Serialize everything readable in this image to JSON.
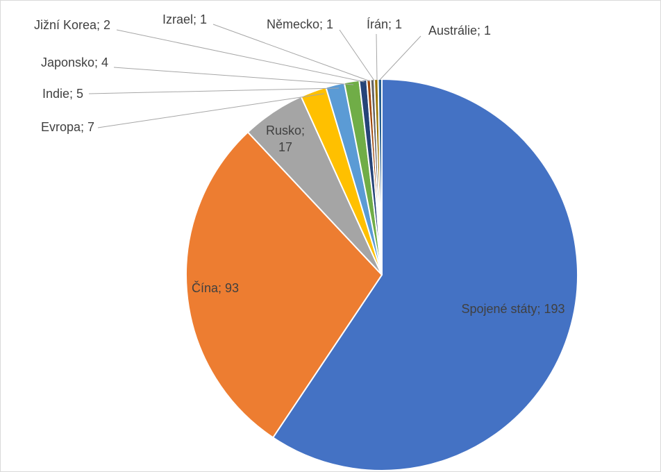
{
  "chart_data": {
    "type": "pie",
    "title": "",
    "legend": "none",
    "start_angle_deg": 0,
    "direction": "clockwise",
    "slices": [
      {
        "name": "Spojené státy",
        "value": 193,
        "label": "Spojené státy; 193",
        "color": "#4472C4"
      },
      {
        "name": "Čína",
        "value": 93,
        "label": "Čína; 93",
        "color": "#ED7D31"
      },
      {
        "name": "Rusko",
        "value": 17,
        "label": "Rusko; 17",
        "label_lines": [
          "Rusko;",
          "17"
        ],
        "color": "#A5A5A5"
      },
      {
        "name": "Evropa",
        "value": 7,
        "label": "Evropa; 7",
        "color": "#FFC000"
      },
      {
        "name": "Indie",
        "value": 5,
        "label": "Indie; 5",
        "color": "#5B9BD5"
      },
      {
        "name": "Japonsko",
        "value": 4,
        "label": "Japonsko; 4",
        "color": "#70AD47"
      },
      {
        "name": "Jižní Korea",
        "value": 2,
        "label": "Jižní Korea; 2",
        "color": "#264478"
      },
      {
        "name": "Izrael",
        "value": 1,
        "label": "Izrael; 1",
        "color": "#9E480E"
      },
      {
        "name": "Německo",
        "value": 1,
        "label": "Německo; 1",
        "color": "#636363"
      },
      {
        "name": "Írán",
        "value": 1,
        "label": "Írán; 1",
        "color": "#997300"
      },
      {
        "name": "Austrálie",
        "value": 1,
        "label": "Austrálie; 1",
        "color": "#255E91"
      }
    ]
  }
}
